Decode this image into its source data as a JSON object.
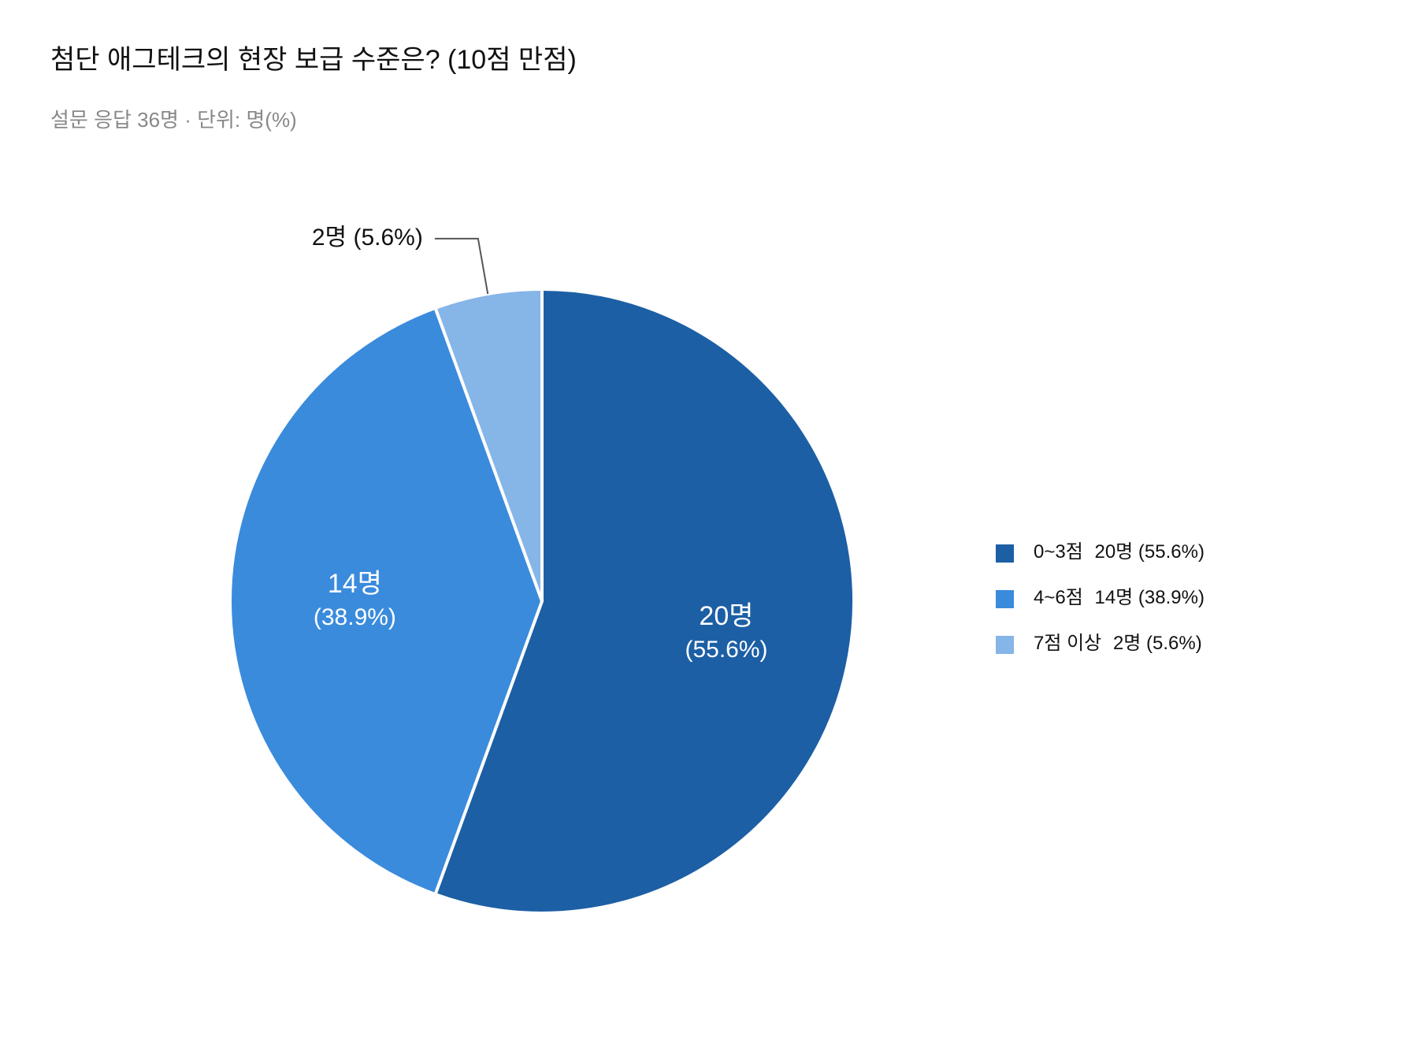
{
  "chart_data": {
    "type": "pie",
    "title": "첨단 애그테크의 현장 보급 수준은? (10점 만점)",
    "subtitle": "설문 응답 36명 · 단위: 명(%)",
    "categories": [
      "0~3점",
      "4~6점",
      "7점 이상"
    ],
    "values": [
      20,
      14,
      2
    ],
    "value_labels": [
      "20명",
      "14명",
      "2명"
    ],
    "percent_labels": [
      "(55.6%)",
      "(38.9%)",
      "(5.6%)"
    ],
    "colors": [
      "#1c5fa5",
      "#3a8bdc",
      "#86b5e8"
    ],
    "legend": "right"
  }
}
